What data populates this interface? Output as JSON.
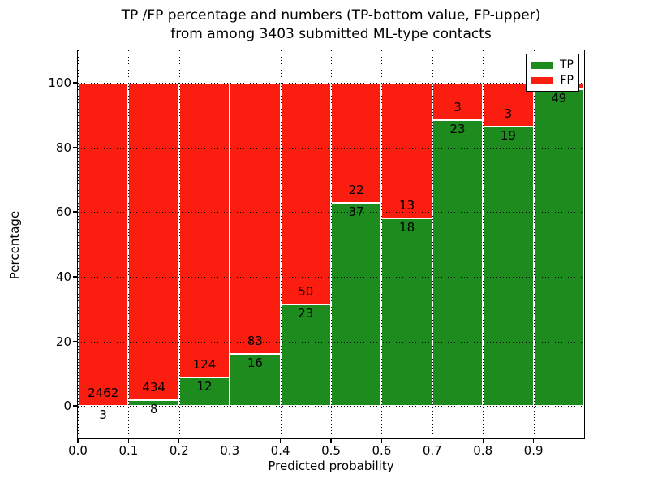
{
  "chart_data": {
    "type": "bar",
    "stacked": true,
    "title_line1": "TP /FP percentage and numbers (TP-bottom value, FP-upper)",
    "title_line2": "from among 3403 submitted ML-type contacts",
    "xlabel": "Predicted probability",
    "ylabel": "Percentage",
    "xlim": [
      0.0,
      1.0
    ],
    "ylim": [
      -10,
      110
    ],
    "grid": true,
    "bin_width": 0.1,
    "bin_starts": [
      0.0,
      0.1,
      0.2,
      0.3,
      0.4,
      0.5,
      0.6,
      0.7,
      0.8,
      0.9
    ],
    "x_tick_labels": [
      "0.0",
      "0.1",
      "0.2",
      "0.3",
      "0.4",
      "0.5",
      "0.6",
      "0.7",
      "0.8",
      "0.9"
    ],
    "y_ticks": [
      0,
      20,
      40,
      60,
      80,
      100
    ],
    "y_tick_labels": [
      "0",
      "20",
      "40",
      "60",
      "80",
      "100"
    ],
    "series": [
      {
        "name": "TP",
        "color": "#1e8b1e",
        "counts": [
          3,
          8,
          12,
          16,
          23,
          37,
          18,
          23,
          19,
          49
        ]
      },
      {
        "name": "FP",
        "color": "#fb1d10",
        "counts": [
          2462,
          434,
          124,
          83,
          50,
          22,
          13,
          3,
          3,
          1
        ]
      }
    ],
    "tp_percent": [
      0.12,
      1.81,
      8.82,
      16.16,
      31.51,
      62.71,
      58.06,
      88.46,
      86.36,
      98.0
    ],
    "tp_labels": [
      "3",
      "8",
      "12",
      "16",
      "23",
      "37",
      "18",
      "23",
      "19",
      "49"
    ],
    "fp_labels": [
      "2462",
      "434",
      "124",
      "83",
      "50",
      "22",
      "13",
      "3",
      "3",
      ""
    ],
    "legend": {
      "position": "upper right",
      "entries": [
        {
          "label": "TP",
          "color": "#1e8b1e"
        },
        {
          "label": "FP",
          "color": "#fb1d10"
        }
      ]
    }
  }
}
